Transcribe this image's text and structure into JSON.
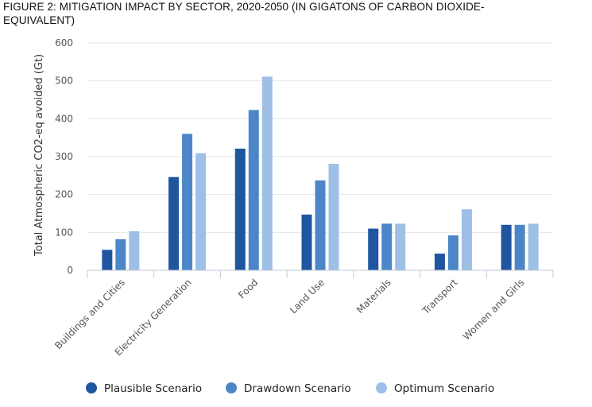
{
  "title": "FIGURE 2: MITIGATION IMPACT BY SECTOR, 2020-2050 (IN GIGATONS OF CARBON DIOXIDE-EQUIVALENT)",
  "colors": {
    "plausible": "#2056a0",
    "drawdown": "#4d86c8",
    "optimum": "#9ec0e6",
    "grid": "#e6e6e6",
    "axis": "#c0c8d8"
  },
  "chart_data": {
    "type": "bar",
    "ylabel": "Total Atmospheric CO2-eq avoided (Gt)",
    "xlabel": "",
    "ylim": [
      0,
      600
    ],
    "yticks": [
      0,
      100,
      200,
      300,
      400,
      500,
      600
    ],
    "grid": true,
    "legend_position": "bottom",
    "categories": [
      "Buildings and Cities",
      "Electricity Generation",
      "Food",
      "Land Use",
      "Materials",
      "Transport",
      "Women and Girls"
    ],
    "series": [
      {
        "name": "Plausible Scenario",
        "color": "#2056a0",
        "values": [
          54,
          246,
          321,
          147,
          110,
          44,
          120
        ]
      },
      {
        "name": "Drawdown Scenario",
        "color": "#4d86c8",
        "values": [
          82,
          360,
          423,
          237,
          123,
          92,
          120
        ]
      },
      {
        "name": "Optimum Scenario",
        "color": "#9ec0e6",
        "values": [
          103,
          309,
          511,
          281,
          123,
          161,
          123
        ]
      }
    ]
  }
}
